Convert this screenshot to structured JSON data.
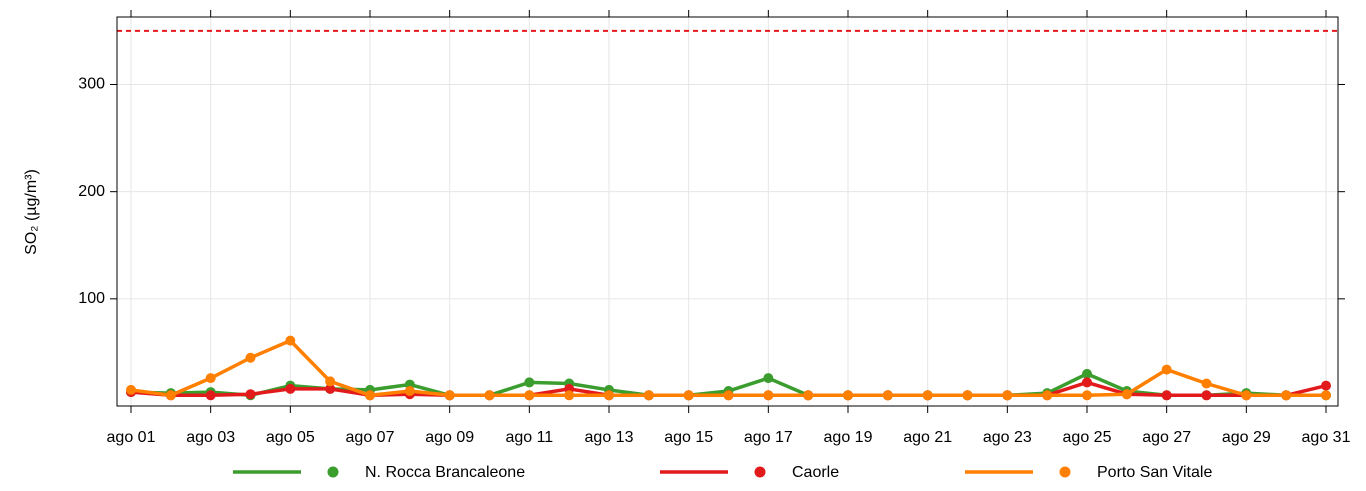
{
  "chart_data": {
    "type": "line",
    "y_label": "SO₂ (µg/m³)",
    "categories": [
      "ago 01",
      null,
      "ago 03",
      null,
      "ago 05",
      null,
      "ago 07",
      null,
      "ago 09",
      null,
      "ago 11",
      null,
      "ago 13",
      null,
      "ago 15",
      null,
      "ago 17",
      null,
      "ago 19",
      null,
      "ago 21",
      null,
      "ago 23",
      null,
      "ago 25",
      null,
      "ago 27",
      null,
      "ago 29",
      null,
      "ago 31"
    ],
    "series": [
      {
        "name": "N. Rocca Brancaleone",
        "color": "#3a9d2e",
        "values": [
          13,
          12,
          13,
          10,
          19,
          16,
          15,
          20,
          10,
          10,
          22,
          21,
          15,
          10,
          10,
          14,
          26,
          10,
          10,
          10,
          10,
          10,
          10,
          12,
          30,
          14,
          10,
          10,
          12,
          10,
          10
        ]
      },
      {
        "name": "Caorle",
        "color": "#e31a1c",
        "values": [
          13,
          10,
          10,
          11,
          16,
          16,
          10,
          11,
          10,
          10,
          10,
          16,
          10,
          10,
          10,
          10,
          10,
          10,
          10,
          10,
          10,
          10,
          10,
          10,
          22,
          11,
          10,
          10,
          10,
          10,
          19
        ]
      },
      {
        "name": "Porto San Vitale",
        "color": "#ff7f00",
        "values": [
          15,
          10,
          26,
          45,
          61,
          23,
          10,
          14,
          10,
          10,
          10,
          10,
          10,
          10,
          10,
          10,
          10,
          10,
          10,
          10,
          10,
          10,
          10,
          10,
          10,
          11,
          34,
          21,
          10,
          10,
          10
        ]
      }
    ],
    "reference_line": {
      "value": 350,
      "color": "#e31a1c"
    },
    "ylim": [
      0,
      363
    ],
    "yticks": [
      100,
      200,
      300
    ],
    "grid": true,
    "legend": "bottom"
  }
}
